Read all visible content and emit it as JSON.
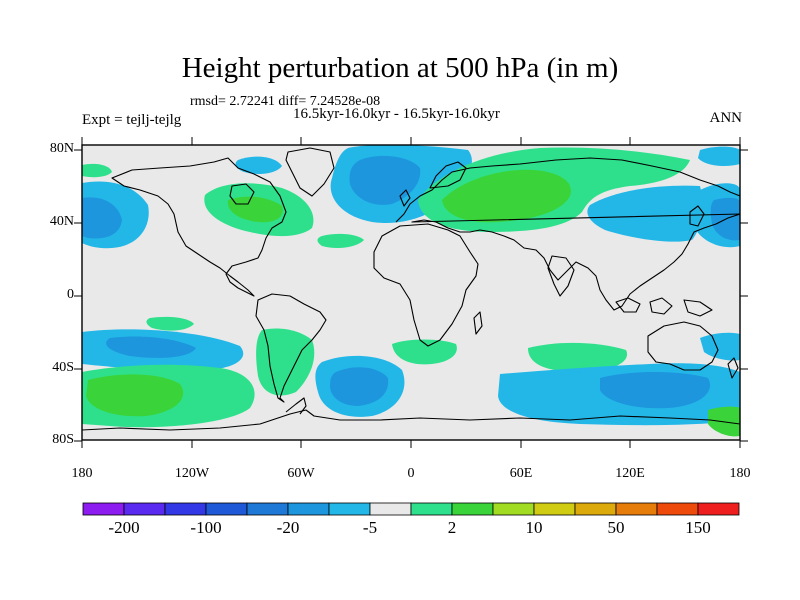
{
  "header": {
    "title": "Height perturbation at 500 hPa (in m)",
    "stats": "rmsd= 2.72241 diff= 7.24528e-08",
    "period": "16.5kyr-16.0kyr - 16.5kyr-16.0kyr",
    "experiment": "Expt = tejlj-tejlg",
    "season": "ANN"
  },
  "axes": {
    "lat_labels": [
      "80N",
      "40N",
      "0",
      "40S",
      "80S"
    ],
    "lon_labels": [
      "180",
      "120W",
      "60W",
      "0",
      "60E",
      "120E",
      "180"
    ]
  },
  "colorbar": {
    "labels": [
      "-200",
      "-100",
      "-20",
      "-5",
      "2",
      "10",
      "50",
      "150"
    ],
    "colors": [
      "#8c1cf0",
      "#5a2af0",
      "#3238e6",
      "#1e5ad8",
      "#1e78d6",
      "#1d96de",
      "#23b7e8",
      "#e9e9e9",
      "#2ee08c",
      "#3ad43a",
      "#a2dc22",
      "#d0cc14",
      "#dcaa0a",
      "#e67c0a",
      "#ee4a0c",
      "#ef1e1e"
    ]
  },
  "colors": {
    "ocean_background": "#e9e9e9",
    "positive_weak": "#2ee08c",
    "positive_mid": "#3ad43a",
    "negative_weak": "#23b7e8",
    "negative_mid": "#1d96de"
  }
}
